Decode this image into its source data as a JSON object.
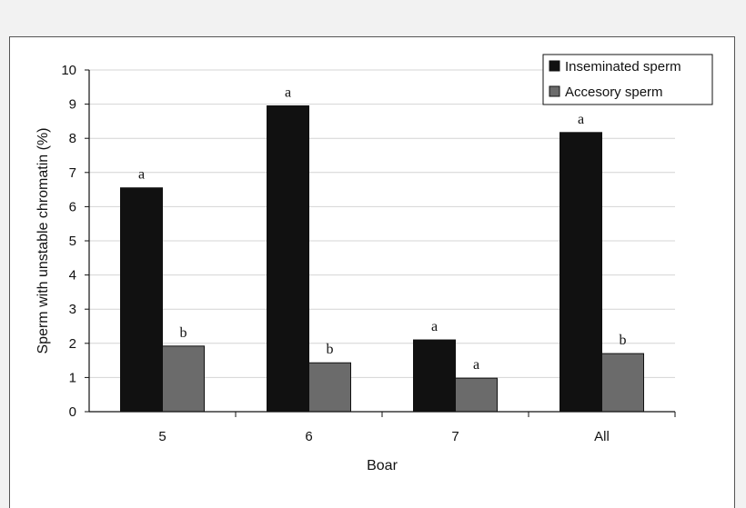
{
  "chart_data": {
    "type": "bar",
    "xlabel": "Boar",
    "ylabel": "Sperm with unstable chromatin (%)",
    "categories": [
      "5",
      "6",
      "7",
      "All"
    ],
    "ylim": [
      0,
      10
    ],
    "yticks": [
      "0",
      "1",
      "2",
      "3",
      "4",
      "5",
      "6",
      "7",
      "8",
      "9",
      "10"
    ],
    "grid": true,
    "legend_position": "top-right",
    "series": [
      {
        "name": "Inseminated sperm",
        "color": "#111111",
        "values": [
          6.55,
          8.95,
          2.1,
          8.17
        ],
        "labels": [
          "a",
          "a",
          "a",
          "a"
        ]
      },
      {
        "name": "Accesory sperm",
        "color": "#6b6b6b",
        "values": [
          1.92,
          1.43,
          0.98,
          1.7
        ],
        "labels": [
          "b",
          "b",
          "a",
          "b"
        ]
      }
    ]
  }
}
